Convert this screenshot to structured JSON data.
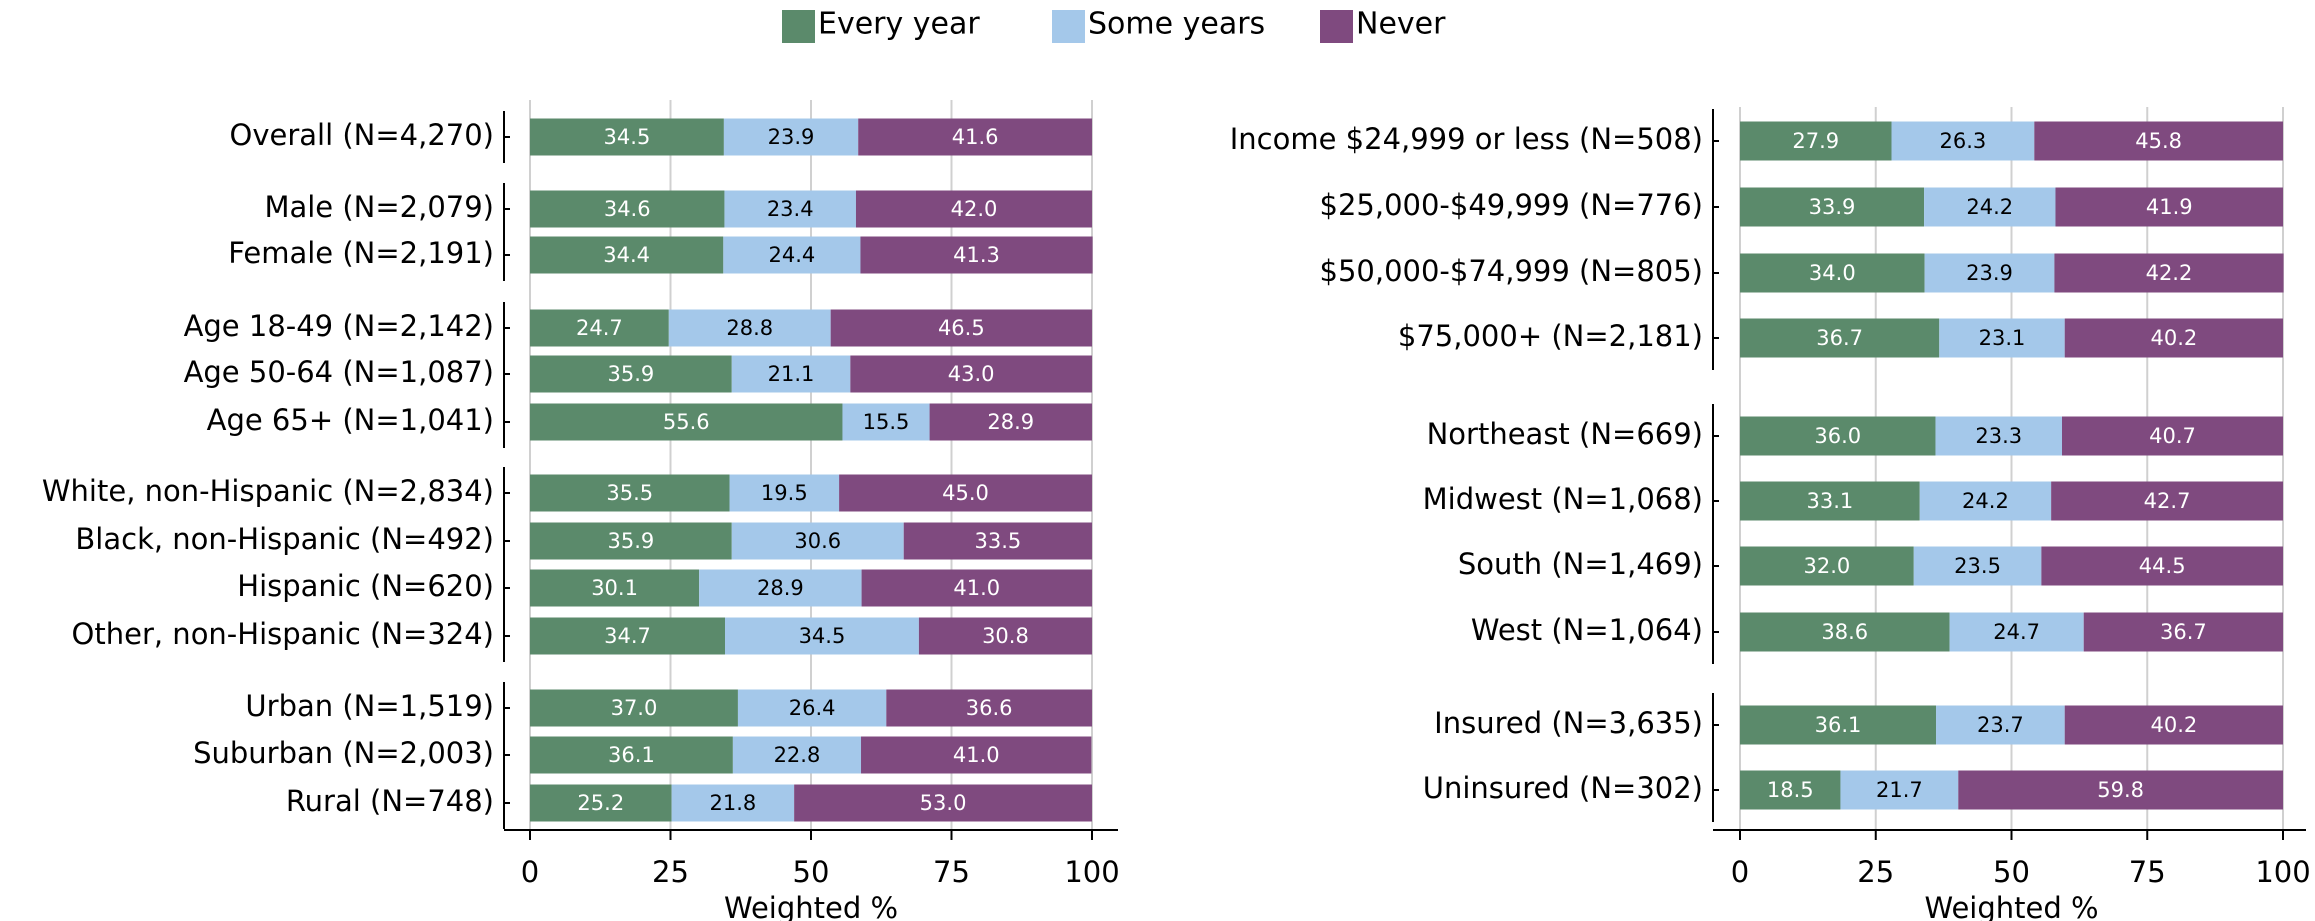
{
  "chart_data": [
    {
      "type": "bar",
      "orientation": "horizontal",
      "stacked": true,
      "categories": [
        "Overall (N=4,270)",
        "Male (N=2,079)",
        "Female (N=2,191)",
        "Age 18-49 (N=2,142)",
        "Age 50-64 (N=1,087)",
        "Age 65+ (N=1,041)",
        "White, non-Hispanic (N=2,834)",
        "Black, non-Hispanic (N=492)",
        "Hispanic (N=620)",
        "Other, non-Hispanic (N=324)",
        "Urban (N=1,519)",
        "Suburban (N=2,003)",
        "Rural (N=748)"
      ],
      "series": [
        {
          "name": "Every year",
          "color": "#5b8a6b",
          "values": [
            34.5,
            34.6,
            34.4,
            24.7,
            35.9,
            55.6,
            35.5,
            35.9,
            30.1,
            34.7,
            37.0,
            36.1,
            25.2
          ],
          "value_labels": [
            "34.5",
            "34.6",
            "34.4",
            "24.7",
            "35.9",
            "55.6",
            "35.5",
            "35.9",
            "30.1",
            "34.7",
            "37.0",
            "36.1",
            "25.2"
          ]
        },
        {
          "name": "Some years",
          "color": "#a4c8ea",
          "values": [
            23.9,
            23.4,
            24.4,
            28.8,
            21.1,
            15.5,
            19.5,
            30.6,
            28.9,
            34.5,
            26.4,
            22.8,
            21.8
          ],
          "value_labels": [
            "23.9",
            "23.4",
            "24.4",
            "28.8",
            "21.1",
            "15.5",
            "19.5",
            "30.6",
            "28.9",
            "34.5",
            "26.4",
            "22.8",
            "21.8"
          ]
        },
        {
          "name": "Never",
          "color": "#7f4a7f",
          "values": [
            41.6,
            42.0,
            41.3,
            46.5,
            43.0,
            28.9,
            45.0,
            33.5,
            41.0,
            30.8,
            36.6,
            41.0,
            53.0
          ],
          "value_labels": [
            "41.6",
            "42.0",
            "41.3",
            "46.5",
            "43.0",
            "28.9",
            "45.0",
            "33.5",
            "41.0",
            "30.8",
            "36.6",
            "41.0",
            "53.0"
          ]
        }
      ],
      "xlim": [
        0,
        100
      ],
      "xticks": [
        0,
        25,
        50,
        75,
        100
      ],
      "xlabel": "Weighted %",
      "grid": true,
      "legend": "top"
    },
    {
      "type": "bar",
      "orientation": "horizontal",
      "stacked": true,
      "categories": [
        "Income $24,999 or less (N=508)",
        "$25,000-$49,999 (N=776)",
        "$50,000-$74,999 (N=805)",
        "$75,000+ (N=2,181)",
        "Northeast (N=669)",
        "Midwest (N=1,068)",
        "South (N=1,469)",
        "West (N=1,064)",
        "Insured (N=3,635)",
        "Uninsured (N=302)"
      ],
      "series": [
        {
          "color": "#5b8a6b",
          "values": [
            27.9,
            33.9,
            34.0,
            36.7,
            36.0,
            33.1,
            32.0,
            38.6,
            36.1,
            18.5
          ],
          "value_labels": [
            "27.9",
            "33.9",
            "34.0",
            "36.7",
            "36.0",
            "33.1",
            "32.0",
            "38.6",
            "36.1",
            "18.5"
          ]
        },
        {
          "color": "#a4c8ea",
          "values": [
            26.3,
            24.2,
            23.9,
            23.1,
            23.3,
            24.2,
            23.5,
            24.7,
            23.7,
            21.7
          ],
          "value_labels": [
            "26.3",
            "24.2",
            "23.9",
            "23.1",
            "23.3",
            "24.2",
            "23.5",
            "24.7",
            "23.7",
            "21.7"
          ]
        },
        {
          "color": "#7f4a7f",
          "values": [
            45.8,
            41.9,
            42.2,
            40.2,
            40.7,
            42.7,
            44.5,
            36.7,
            40.2,
            59.8
          ],
          "value_labels": [
            "45.8",
            "41.9",
            "42.2",
            "40.2",
            "40.7",
            "42.7",
            "44.5",
            "36.7",
            "40.2",
            "59.8"
          ]
        }
      ],
      "xlim": [
        0,
        100
      ],
      "xticks": [
        0,
        25,
        50,
        75,
        100
      ],
      "xlabel": "Weighted %",
      "grid": true
    }
  ]
}
